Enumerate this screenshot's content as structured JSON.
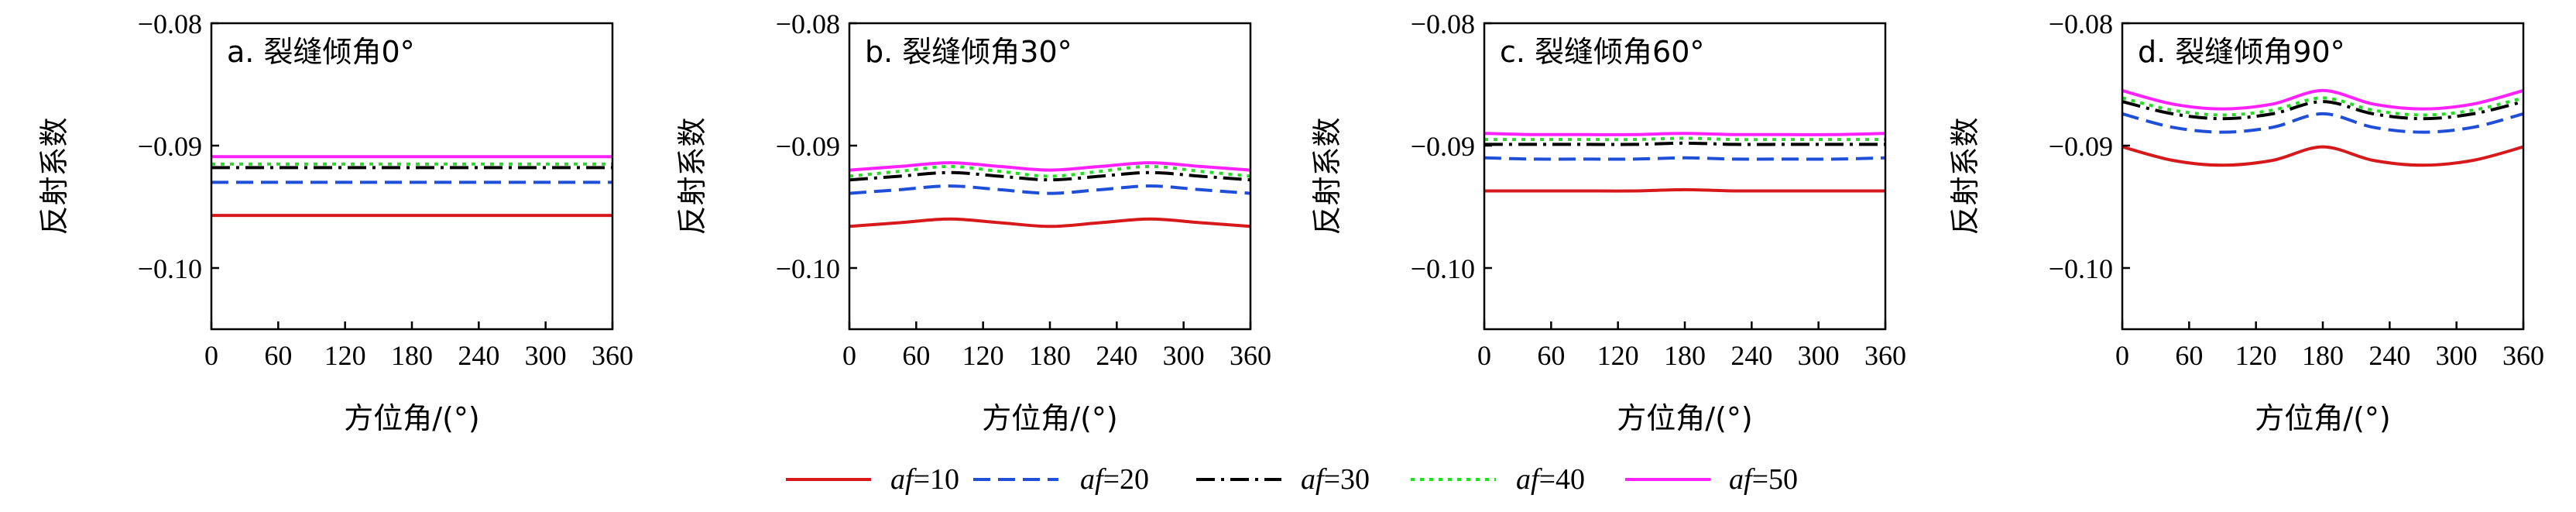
{
  "colors": {
    "af10": "#d7191c",
    "af20": "#1f4fd8",
    "af30": "#000000",
    "af40": "#22dd22",
    "af50": "#ff22ff"
  },
  "legend": [
    {
      "var": "af",
      "eq": "=10",
      "key": "af10",
      "dash": "solid"
    },
    {
      "var": "af",
      "eq": "=20",
      "key": "af20",
      "dash": "dash"
    },
    {
      "var": "af",
      "eq": "=30",
      "key": "af30",
      "dash": "dashdot"
    },
    {
      "var": "af",
      "eq": "=40",
      "key": "af40",
      "dash": "dot"
    },
    {
      "var": "af",
      "eq": "=50",
      "key": "af50",
      "dash": "solid"
    }
  ],
  "chart_data": [
    {
      "type": "line",
      "title": "a. 裂缝倾角0°",
      "xlabel": "方位角/(°)",
      "ylabel": "反射系数",
      "xlim": [
        0,
        360
      ],
      "ylim": [
        -0.105,
        -0.08
      ],
      "xticks": [
        "0",
        "60",
        "120",
        "180",
        "240",
        "300",
        "360"
      ],
      "yticks": [
        "−0.08",
        "−0.09",
        "−0.10"
      ],
      "x": [
        0,
        45,
        90,
        135,
        180,
        225,
        270,
        315,
        360
      ],
      "series": [
        {
          "name": "af=10",
          "values": [
            -0.0957,
            -0.0957,
            -0.0957,
            -0.0957,
            -0.0957,
            -0.0957,
            -0.0957,
            -0.0957,
            -0.0957
          ]
        },
        {
          "name": "af=20",
          "values": [
            -0.093,
            -0.093,
            -0.093,
            -0.093,
            -0.093,
            -0.093,
            -0.093,
            -0.093,
            -0.093
          ]
        },
        {
          "name": "af=30",
          "values": [
            -0.0918,
            -0.0918,
            -0.0918,
            -0.0918,
            -0.0918,
            -0.0918,
            -0.0918,
            -0.0918,
            -0.0918
          ]
        },
        {
          "name": "af=40",
          "values": [
            -0.0915,
            -0.0915,
            -0.0915,
            -0.0915,
            -0.0915,
            -0.0915,
            -0.0915,
            -0.0915,
            -0.0915
          ]
        },
        {
          "name": "af=50",
          "values": [
            -0.0909,
            -0.0909,
            -0.0909,
            -0.0909,
            -0.0909,
            -0.0909,
            -0.0909,
            -0.0909,
            -0.0909
          ]
        }
      ]
    },
    {
      "type": "line",
      "title": "b. 裂缝倾角30°",
      "xlabel": "方位角/(°)",
      "ylabel": "反射系数",
      "xlim": [
        0,
        360
      ],
      "ylim": [
        -0.105,
        -0.08
      ],
      "xticks": [
        "0",
        "60",
        "120",
        "180",
        "240",
        "300",
        "360"
      ],
      "yticks": [
        "−0.08",
        "−0.09",
        "−0.10"
      ],
      "x": [
        0,
        45,
        90,
        135,
        180,
        225,
        270,
        315,
        360
      ],
      "series": [
        {
          "name": "af=10",
          "values": [
            -0.0966,
            -0.0963,
            -0.096,
            -0.0963,
            -0.0966,
            -0.0963,
            -0.096,
            -0.0963,
            -0.0966
          ]
        },
        {
          "name": "af=20",
          "values": [
            -0.0939,
            -0.0936,
            -0.0933,
            -0.0936,
            -0.0939,
            -0.0936,
            -0.0933,
            -0.0936,
            -0.0939
          ]
        },
        {
          "name": "af=30",
          "values": [
            -0.0928,
            -0.0925,
            -0.0922,
            -0.0925,
            -0.0928,
            -0.0925,
            -0.0922,
            -0.0925,
            -0.0928
          ]
        },
        {
          "name": "af=40",
          "values": [
            -0.0925,
            -0.0921,
            -0.0917,
            -0.0921,
            -0.0925,
            -0.0921,
            -0.0917,
            -0.0921,
            -0.0925
          ]
        },
        {
          "name": "af=50",
          "values": [
            -0.092,
            -0.0917,
            -0.0914,
            -0.0917,
            -0.092,
            -0.0917,
            -0.0914,
            -0.0917,
            -0.092
          ]
        }
      ]
    },
    {
      "type": "line",
      "title": "c. 裂缝倾角60°",
      "xlabel": "方位角/(°)",
      "ylabel": "反射系数",
      "xlim": [
        0,
        360
      ],
      "ylim": [
        -0.105,
        -0.08
      ],
      "xticks": [
        "0",
        "60",
        "120",
        "180",
        "240",
        "300",
        "360"
      ],
      "yticks": [
        "−0.08",
        "−0.09",
        "−0.10"
      ],
      "x": [
        0,
        45,
        90,
        135,
        180,
        225,
        270,
        315,
        360
      ],
      "series": [
        {
          "name": "af=10",
          "values": [
            -0.0937,
            -0.0937,
            -0.0937,
            -0.0937,
            -0.0936,
            -0.0937,
            -0.0937,
            -0.0937,
            -0.0937
          ]
        },
        {
          "name": "af=20",
          "values": [
            -0.091,
            -0.0911,
            -0.0911,
            -0.0911,
            -0.091,
            -0.0911,
            -0.0911,
            -0.0911,
            -0.091
          ]
        },
        {
          "name": "af=30",
          "values": [
            -0.0899,
            -0.0899,
            -0.0899,
            -0.0899,
            -0.0898,
            -0.0899,
            -0.0899,
            -0.0899,
            -0.0899
          ]
        },
        {
          "name": "af=40",
          "values": [
            -0.0895,
            -0.0895,
            -0.0895,
            -0.0895,
            -0.0894,
            -0.0895,
            -0.0895,
            -0.0895,
            -0.0895
          ]
        },
        {
          "name": "af=50",
          "values": [
            -0.089,
            -0.0891,
            -0.0891,
            -0.0891,
            -0.089,
            -0.0891,
            -0.0891,
            -0.0891,
            -0.089
          ]
        }
      ]
    },
    {
      "type": "line",
      "title": "d. 裂缝倾角90°",
      "xlabel": "方位角/(°)",
      "ylabel": "反射系数",
      "xlim": [
        0,
        360
      ],
      "ylim": [
        -0.105,
        -0.08
      ],
      "xticks": [
        "0",
        "60",
        "120",
        "180",
        "240",
        "300",
        "360"
      ],
      "yticks": [
        "−0.08",
        "−0.09",
        "−0.10"
      ],
      "x": [
        0,
        45,
        90,
        135,
        180,
        225,
        270,
        315,
        360
      ],
      "series": [
        {
          "name": "af=10",
          "values": [
            -0.0901,
            -0.0912,
            -0.0916,
            -0.0912,
            -0.0901,
            -0.0912,
            -0.0916,
            -0.0912,
            -0.0901
          ]
        },
        {
          "name": "af=20",
          "values": [
            -0.0874,
            -0.0885,
            -0.0889,
            -0.0885,
            -0.0874,
            -0.0885,
            -0.0889,
            -0.0885,
            -0.0874
          ]
        },
        {
          "name": "af=30",
          "values": [
            -0.0864,
            -0.0874,
            -0.0878,
            -0.0874,
            -0.0864,
            -0.0874,
            -0.0878,
            -0.0874,
            -0.0864
          ]
        },
        {
          "name": "af=40",
          "values": [
            -0.0861,
            -0.0871,
            -0.0875,
            -0.0871,
            -0.0861,
            -0.0871,
            -0.0875,
            -0.0871,
            -0.0861
          ]
        },
        {
          "name": "af=50",
          "values": [
            -0.0855,
            -0.0866,
            -0.087,
            -0.0866,
            -0.0855,
            -0.0866,
            -0.087,
            -0.0866,
            -0.0855
          ]
        }
      ]
    }
  ]
}
